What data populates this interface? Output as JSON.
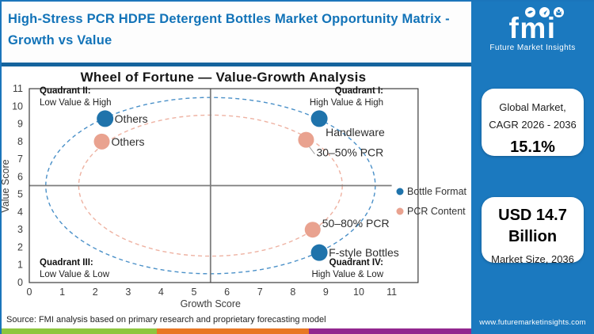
{
  "header": {
    "title": "High-Stress PCR HDPE Detergent Bottles Market Opportunity Matrix - Growth vs Value"
  },
  "logo": {
    "text": "fmi",
    "subtext": "Future Market Insights"
  },
  "panel": {
    "card1": {
      "line1": "Global Market,",
      "line2": "CAGR 2026 - 2036",
      "value": "15.1%"
    },
    "card2": {
      "value": "USD 14.7 Billion",
      "label": "Market Size, 2036"
    },
    "website": "www.futuremarketinsights.com"
  },
  "source": {
    "text": "Source: FMI analysis based on primary research and proprietary forecasting model"
  },
  "colors": {
    "header_blue": "#1273b8",
    "rule_blue": "#15649e",
    "panel_blue": "#1b79bf",
    "strip_green": "#8dc63f",
    "strip_orange": "#e87724",
    "strip_purple": "#92278f",
    "bottle_format_blue": "#1f73ab",
    "pcr_content_salmon": "#e9a28f"
  },
  "chart_data": {
    "type": "scatter",
    "title": "Wheel of Fortune — Value-Growth Analysis",
    "xlabel": "Growth Score",
    "ylabel": "Value Score",
    "xlim": [
      0,
      11.8
    ],
    "ylim": [
      0,
      11
    ],
    "xticks": [
      0,
      1,
      2,
      3,
      4,
      5,
      6,
      7,
      8,
      9,
      10,
      11
    ],
    "yticks": [
      0,
      1,
      2,
      3,
      4,
      5,
      6,
      7,
      8,
      9,
      10,
      11
    ],
    "grid": false,
    "quadrant_divider": {
      "x": 5.5,
      "y": 5.5
    },
    "quadrants": [
      {
        "name": "Quadrant I:",
        "desc": "High Value & High",
        "position": "top-right"
      },
      {
        "name": "Quadrant II:",
        "desc": "Low Value & High",
        "position": "top-left"
      },
      {
        "name": "Quadrant III:",
        "desc": "Low Value & Low",
        "position": "bottom-left"
      },
      {
        "name": "Quadrant IV:",
        "desc": "High Value & Low",
        "position": "bottom-right"
      }
    ],
    "ellipses": [
      {
        "series": "Bottle Format",
        "cx": 5.5,
        "cy": 5.5,
        "rx": 5.0,
        "ry": 5.0,
        "color": "#4a90c8"
      },
      {
        "series": "PCR Content",
        "cx": 5.5,
        "cy": 5.5,
        "rx": 4.0,
        "ry": 4.0,
        "color": "#eeb2a2"
      }
    ],
    "series": [
      {
        "name": "Bottle Format",
        "color": "#1f73ab",
        "marker_radius": 10.5,
        "points": [
          {
            "label": "Others",
            "x": 2.3,
            "y": 9.3,
            "label_side": "right"
          },
          {
            "label": "Handleware",
            "x": 8.8,
            "y": 9.3,
            "label_side": "below-right"
          },
          {
            "label": "F-style Bottles",
            "x": 8.8,
            "y": 1.7,
            "label_side": "right"
          }
        ]
      },
      {
        "name": "PCR Content",
        "color": "#e9a28f",
        "marker_radius": 10,
        "points": [
          {
            "label": "Others",
            "x": 2.2,
            "y": 8.0,
            "label_side": "right"
          },
          {
            "label": "30–50% PCR",
            "x": 8.4,
            "y": 8.1,
            "label_side": "leader-below"
          },
          {
            "label": "50–80% PCR",
            "x": 8.6,
            "y": 3.0,
            "label_side": "leader-above"
          }
        ]
      }
    ],
    "legend": {
      "position": "right",
      "entries": [
        "Bottle Format",
        "PCR Content"
      ]
    }
  }
}
